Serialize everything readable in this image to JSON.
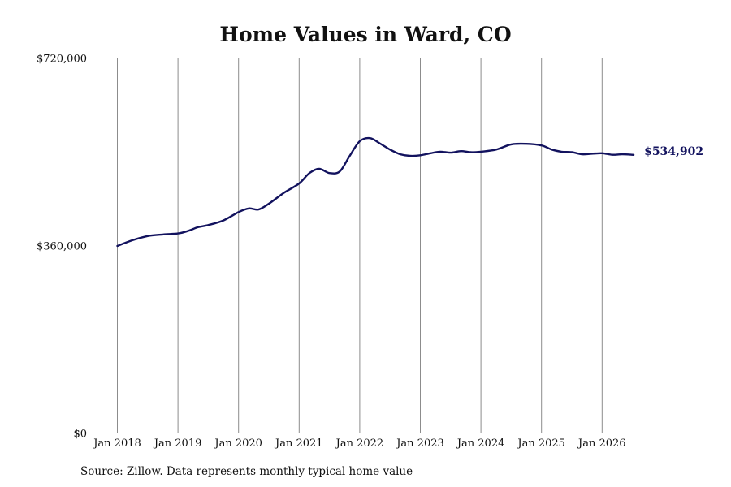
{
  "chart_data": {
    "type": "line",
    "title": "Home Values in Ward, CO",
    "xlabel": "",
    "ylabel": "",
    "ylim": [
      0,
      720000
    ],
    "y_ticks": [
      {
        "value": 0,
        "label": "$0"
      },
      {
        "value": 360000,
        "label": "$360,000"
      },
      {
        "value": 720000,
        "label": "$720,000"
      }
    ],
    "x_ticks": [
      {
        "value": 2018,
        "label": "Jan 2018"
      },
      {
        "value": 2019,
        "label": "Jan 2019"
      },
      {
        "value": 2020,
        "label": "Jan 2020"
      },
      {
        "value": 2021,
        "label": "Jan 2021"
      },
      {
        "value": 2022,
        "label": "Jan 2022"
      },
      {
        "value": 2023,
        "label": "Jan 2023"
      },
      {
        "value": 2024,
        "label": "Jan 2024"
      },
      {
        "value": 2025,
        "label": "Jan 2025"
      },
      {
        "value": 2026,
        "label": "Jan 2026"
      }
    ],
    "xlim": [
      2018,
      2026.52
    ],
    "grid": "vertical",
    "series": [
      {
        "color": "#12125e",
        "end_label": "$534,902",
        "x": [
          2018.0,
          2018.25,
          2018.5,
          2018.75,
          2019.0,
          2019.17,
          2019.33,
          2019.5,
          2019.75,
          2020.0,
          2020.17,
          2020.33,
          2020.5,
          2020.75,
          2021.0,
          2021.17,
          2021.33,
          2021.5,
          2021.67,
          2021.83,
          2022.0,
          2022.17,
          2022.33,
          2022.5,
          2022.67,
          2022.83,
          2023.0,
          2023.17,
          2023.33,
          2023.5,
          2023.67,
          2023.83,
          2024.0,
          2024.25,
          2024.5,
          2024.75,
          2025.0,
          2025.17,
          2025.33,
          2025.5,
          2025.67,
          2025.83,
          2026.0,
          2026.17,
          2026.33,
          2026.52
        ],
        "y": [
          360000,
          371000,
          379000,
          382000,
          384000,
          389000,
          396000,
          400000,
          409000,
          425000,
          432000,
          430000,
          441000,
          462000,
          480000,
          500000,
          508000,
          500000,
          503000,
          532000,
          561000,
          567000,
          557000,
          545000,
          536000,
          533000,
          534000,
          538000,
          541000,
          539000,
          542000,
          540000,
          541000,
          545000,
          555000,
          556000,
          553000,
          545000,
          541000,
          540000,
          536000,
          537000,
          538000,
          535000,
          536000,
          534902
        ]
      }
    ]
  },
  "source": "Source: Zillow. Data represents monthly typical home value"
}
